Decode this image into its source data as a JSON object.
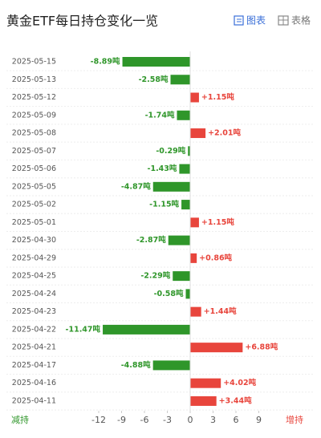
{
  "chart_data": {
    "type": "bar",
    "orientation": "horizontal",
    "title": "黄金ETF每日持仓变化一览",
    "tabs": [
      "图表",
      "表格"
    ],
    "categories": [
      "2025-05-15",
      "2025-05-13",
      "2025-05-12",
      "2025-05-09",
      "2025-05-08",
      "2025-05-07",
      "2025-05-06",
      "2025-05-05",
      "2025-05-02",
      "2025-05-01",
      "2025-04-30",
      "2025-04-29",
      "2025-04-25",
      "2025-04-24",
      "2025-04-23",
      "2025-04-22",
      "2025-04-21",
      "2025-04-17",
      "2025-04-16",
      "2025-04-11"
    ],
    "values": [
      -8.89,
      -2.58,
      1.15,
      -1.74,
      2.01,
      -0.29,
      -1.43,
      -4.87,
      -1.15,
      1.15,
      -2.87,
      0.86,
      -2.29,
      -0.58,
      1.44,
      -11.47,
      6.88,
      -4.88,
      4.02,
      3.44
    ],
    "value_labels": [
      "-8.89吨",
      "-2.58吨",
      "+1.15吨",
      "-1.74吨",
      "+2.01吨",
      "-0.29吨",
      "-1.43吨",
      "-4.87吨",
      "-1.15吨",
      "+1.15吨",
      "-2.87吨",
      "+0.86吨",
      "-2.29吨",
      "-0.58吨",
      "+1.44吨",
      "-11.47吨",
      "+6.88吨",
      "-4.88吨",
      "+4.02吨",
      "+3.44吨"
    ],
    "negative_color": "#2f962a",
    "positive_color": "#e8453c",
    "decrease_label": "减持",
    "increase_label": "增持",
    "xlim": [
      -14,
      12
    ],
    "xticks": [
      -12,
      -9,
      -6,
      -3,
      0,
      3,
      6,
      9
    ]
  }
}
